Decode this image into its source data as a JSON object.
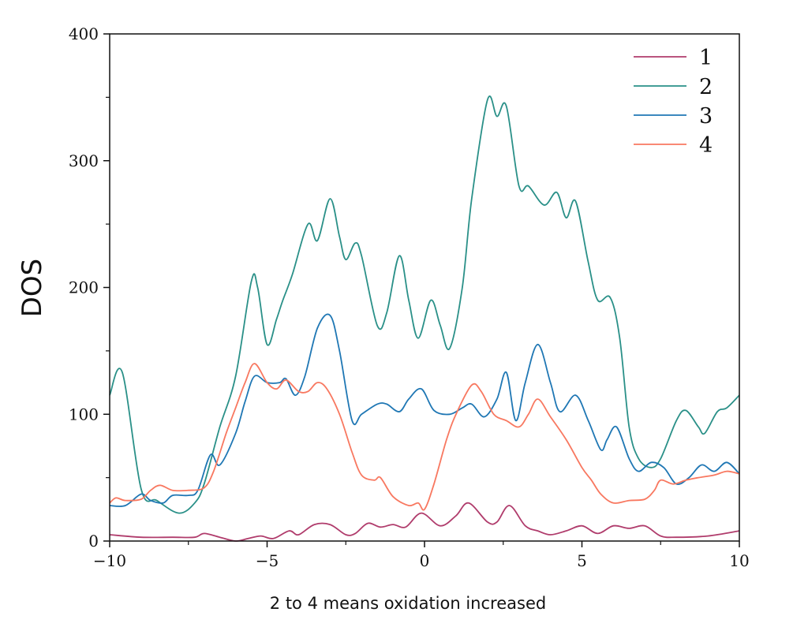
{
  "chart_data": {
    "type": "line",
    "title": "",
    "xlabel": "2 to 4 means oxidation increased",
    "ylabel": "DOS",
    "xlim": [
      -10,
      10
    ],
    "ylim": [
      0,
      400
    ],
    "xticks": [
      -10,
      -5,
      0,
      5,
      10
    ],
    "xtick_labels": [
      "−10",
      "−5",
      "0",
      "5",
      "10"
    ],
    "yticks": [
      0,
      100,
      200,
      300,
      400
    ],
    "ytick_labels": [
      "0",
      "100",
      "200",
      "300",
      "400"
    ],
    "grid": false,
    "legend_position": "top-right",
    "series": [
      {
        "name": "1",
        "color": "#b03c6c",
        "x": [
          -10,
          -9,
          -8,
          -7.3,
          -7,
          -6.5,
          -6,
          -5.6,
          -5.2,
          -4.8,
          -4.3,
          -4,
          -3.5,
          -3,
          -2.5,
          -2.2,
          -1.8,
          -1.4,
          -1,
          -0.6,
          -0.1,
          0.5,
          1,
          1.4,
          2,
          2.3,
          2.7,
          3.2,
          3.6,
          4,
          4.5,
          5,
          5.5,
          6,
          6.5,
          7,
          7.5,
          8,
          9,
          10
        ],
        "y": [
          5,
          3,
          3,
          3,
          6,
          3,
          0,
          2,
          4,
          2,
          8,
          5,
          13,
          13,
          5,
          6,
          14,
          11,
          13,
          11,
          22,
          12,
          20,
          30,
          15,
          15,
          28,
          12,
          8,
          5,
          8,
          12,
          6,
          12,
          10,
          12,
          4,
          3,
          4,
          8
        ]
      },
      {
        "name": "2",
        "color": "#2a9088",
        "x": [
          -10,
          -9.6,
          -9,
          -8.5,
          -7.8,
          -7.3,
          -7,
          -6.5,
          -6,
          -5.5,
          -5.3,
          -5,
          -4.7,
          -4.5,
          -4.2,
          -3.7,
          -3.4,
          -3,
          -2.7,
          -2.5,
          -2.2,
          -2,
          -1.5,
          -1.2,
          -0.8,
          -0.5,
          -0.2,
          0.2,
          0.5,
          0.8,
          1.2,
          1.5,
          2,
          2.3,
          2.6,
          3,
          3.3,
          3.8,
          4.2,
          4.5,
          4.8,
          5.2,
          5.5,
          5.9,
          6.2,
          6.5,
          6.8,
          7.2,
          7.5,
          8,
          8.3,
          8.7,
          8.9,
          9.3,
          9.6,
          10
        ],
        "y": [
          115,
          133,
          41,
          32,
          22,
          30,
          45,
          90,
          130,
          205,
          200,
          155,
          175,
          190,
          210,
          250,
          237,
          270,
          240,
          222,
          235,
          225,
          170,
          180,
          225,
          190,
          160,
          190,
          170,
          152,
          200,
          270,
          348,
          335,
          343,
          280,
          280,
          265,
          275,
          255,
          268,
          220,
          190,
          192,
          160,
          90,
          65,
          58,
          65,
          95,
          103,
          90,
          85,
          102,
          105,
          115
        ]
      },
      {
        "name": "3",
        "color": "#1f77b4",
        "x": [
          -10,
          -9.5,
          -9,
          -8.7,
          -8.3,
          -8,
          -7.5,
          -7.2,
          -6.8,
          -6.5,
          -6,
          -5.7,
          -5.4,
          -5,
          -4.6,
          -4.4,
          -4.1,
          -3.8,
          -3.4,
          -3,
          -2.7,
          -2.3,
          -2,
          -1.5,
          -1.2,
          -0.8,
          -0.5,
          -0.1,
          0.3,
          0.8,
          1.2,
          1.5,
          1.9,
          2.3,
          2.6,
          2.9,
          3.2,
          3.6,
          4,
          4.3,
          4.8,
          5.2,
          5.6,
          5.8,
          6.1,
          6.5,
          6.8,
          7.2,
          7.6,
          8,
          8.4,
          8.8,
          9.2,
          9.6,
          10
        ],
        "y": [
          28,
          28,
          37,
          32,
          30,
          36,
          36,
          40,
          68,
          60,
          85,
          110,
          130,
          125,
          125,
          128,
          115,
          130,
          168,
          178,
          150,
          95,
          100,
          108,
          108,
          102,
          112,
          120,
          103,
          100,
          105,
          108,
          98,
          112,
          133,
          95,
          125,
          155,
          125,
          102,
          115,
          95,
          72,
          80,
          90,
          65,
          55,
          62,
          58,
          45,
          50,
          60,
          55,
          62,
          53
        ]
      },
      {
        "name": "4",
        "color": "#f87860",
        "x": [
          -10,
          -9.8,
          -9.5,
          -9,
          -8.7,
          -8.4,
          -8,
          -7.5,
          -7,
          -6.7,
          -6.3,
          -6,
          -5.7,
          -5.4,
          -5,
          -4.7,
          -4.4,
          -4,
          -3.7,
          -3.4,
          -3.1,
          -2.7,
          -2.3,
          -2,
          -1.6,
          -1.4,
          -1,
          -0.5,
          -0.2,
          0,
          0.3,
          0.7,
          1,
          1.5,
          1.8,
          2.2,
          2.6,
          3,
          3.3,
          3.6,
          4,
          4.5,
          5,
          5.3,
          5.6,
          6,
          6.5,
          7,
          7.3,
          7.5,
          7.9,
          8.3,
          8.7,
          9.2,
          9.6,
          10
        ],
        "y": [
          30,
          34,
          32,
          33,
          40,
          44,
          40,
          40,
          42,
          55,
          85,
          105,
          125,
          140,
          125,
          120,
          127,
          118,
          118,
          125,
          120,
          100,
          70,
          52,
          48,
          50,
          35,
          28,
          30,
          25,
          45,
          80,
          100,
          123,
          118,
          100,
          95,
          90,
          100,
          112,
          98,
          80,
          58,
          48,
          37,
          30,
          32,
          33,
          40,
          48,
          45,
          48,
          50,
          52,
          55,
          53
        ]
      }
    ]
  }
}
